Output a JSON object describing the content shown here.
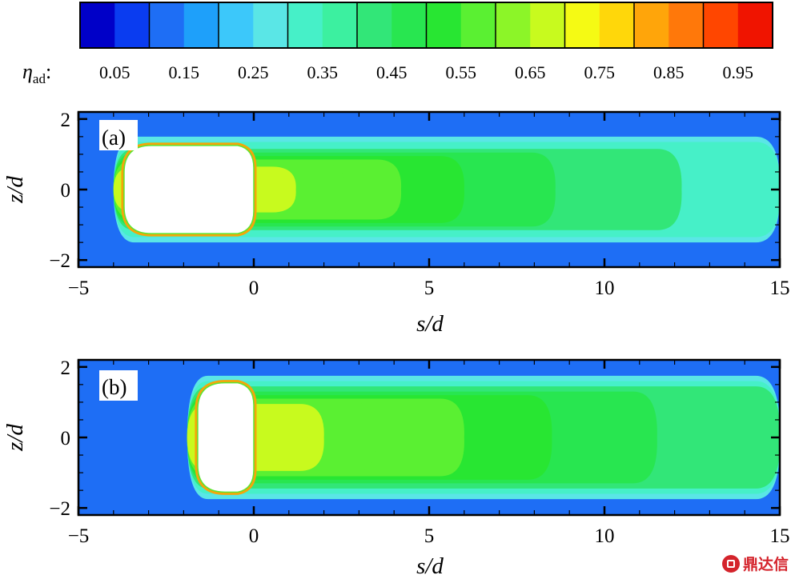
{
  "colorbar": {
    "symbol": "η",
    "subscript": "ad",
    "suffix": ":",
    "labels": [
      "0.05",
      "0.15",
      "0.25",
      "0.35",
      "0.45",
      "0.55",
      "0.65",
      "0.75",
      "0.85",
      "0.95"
    ],
    "colors": [
      "#0000c8",
      "#0a3cf0",
      "#1e6ef5",
      "#1ea0fa",
      "#3cc8fa",
      "#5ae6e6",
      "#46f0c8",
      "#3cf0a0",
      "#32e678",
      "#28e650",
      "#28e632",
      "#5af032",
      "#8cf528",
      "#c8fa1e",
      "#f5fa14",
      "#ffd70a",
      "#ffa50a",
      "#ff780a",
      "#ff4600",
      "#f01400"
    ]
  },
  "chart_data": [
    {
      "type": "heatmap",
      "panel_label": "(a)",
      "xlabel": "s/d",
      "ylabel": "z/d",
      "xlim": [
        -5,
        15
      ],
      "ylim": [
        -2.2,
        2.2
      ],
      "x_ticks": [
        -5,
        0,
        5,
        10,
        15
      ],
      "y_ticks": [
        -2,
        0,
        2
      ],
      "x_tick_labels": [
        "−5",
        "0",
        "5",
        "10",
        "15"
      ],
      "y_tick_labels": [
        "−2",
        "0",
        "2"
      ],
      "background_eta": 0.1,
      "hole": {
        "s_start": -3.7,
        "s_end": 0,
        "z_half_width": 1.25
      },
      "contours": [
        {
          "eta": 0.25,
          "s_end": 15.0,
          "z_half_width": 1.5
        },
        {
          "eta": 0.35,
          "s_end": 15.0,
          "z_half_width": 1.35
        },
        {
          "eta": 0.4,
          "s_end": 12.2,
          "z_half_width": 1.15
        },
        {
          "eta": 0.45,
          "s_end": 8.6,
          "z_half_width": 1.05
        },
        {
          "eta": 0.5,
          "s_end": 6.0,
          "z_half_width": 0.95
        },
        {
          "eta": 0.55,
          "s_end": 4.2,
          "z_half_width": 0.85
        },
        {
          "eta": 0.6,
          "s_end": 2.6,
          "z_half_width": 0.75
        },
        {
          "eta": 0.65,
          "s_end": 1.2,
          "z_half_width": 0.65
        }
      ]
    },
    {
      "type": "heatmap",
      "panel_label": "(b)",
      "xlabel": "s/d",
      "ylabel": "z/d",
      "xlim": [
        -5,
        15
      ],
      "ylim": [
        -2.2,
        2.2
      ],
      "x_ticks": [
        -5,
        0,
        5,
        10,
        15
      ],
      "y_ticks": [
        -2,
        0,
        2
      ],
      "x_tick_labels": [
        "−5",
        "0",
        "5",
        "10",
        "15"
      ],
      "y_tick_labels": [
        "−2",
        "0",
        "2"
      ],
      "background_eta": 0.1,
      "hole": {
        "s_start": -1.6,
        "s_end": 0,
        "z_half_width": 1.55
      },
      "contours": [
        {
          "eta": 0.25,
          "s_end": 15.0,
          "z_half_width": 1.75
        },
        {
          "eta": 0.35,
          "s_end": 15.0,
          "z_half_width": 1.6
        },
        {
          "eta": 0.4,
          "s_end": 15.0,
          "z_half_width": 1.45
        },
        {
          "eta": 0.45,
          "s_end": 11.5,
          "z_half_width": 1.3
        },
        {
          "eta": 0.5,
          "s_end": 8.5,
          "z_half_width": 1.2
        },
        {
          "eta": 0.55,
          "s_end": 6.0,
          "z_half_width": 1.1
        },
        {
          "eta": 0.6,
          "s_end": 3.5,
          "z_half_width": 1.0
        },
        {
          "eta": 0.65,
          "s_end": 2.0,
          "z_half_width": 0.95
        },
        {
          "eta": 0.7,
          "s_end": 0.8,
          "z_half_width": 0.9
        }
      ]
    }
  ],
  "watermark": "鼎达信"
}
